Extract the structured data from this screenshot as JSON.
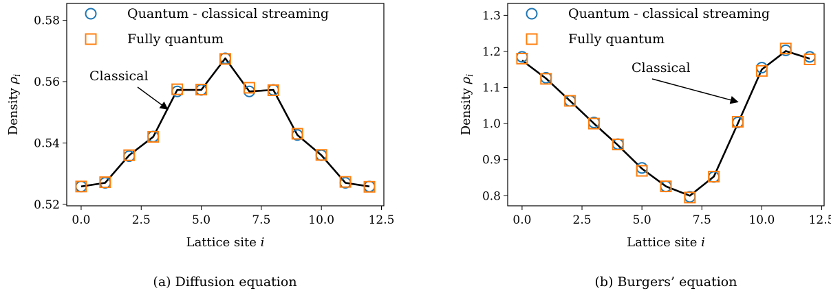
{
  "chart_data": [
    {
      "type": "line",
      "caption": "(a) Diffusion equation",
      "xlabel": "Lattice site i",
      "ylabel": "Density ρi",
      "xlim": [
        -0.6,
        12.6
      ],
      "ylim": [
        0.5195,
        0.5855
      ],
      "xticks": [
        0.0,
        2.5,
        5.0,
        7.5,
        10.0,
        12.5
      ],
      "xtick_labels": [
        "0.0",
        "2.5",
        "5.0",
        "7.5",
        "10.0",
        "12.5"
      ],
      "yticks": [
        0.52,
        0.54,
        0.56,
        0.58
      ],
      "ytick_labels": [
        "0.52",
        "0.54",
        "0.56",
        "0.58"
      ],
      "legend_position": "top",
      "grid": false,
      "annotation": {
        "text": "Classical",
        "arrow_to": [
          3.6,
          0.551
        ]
      },
      "x": [
        0,
        1,
        2,
        3,
        4,
        5,
        6,
        7,
        8,
        9,
        10,
        11,
        12
      ],
      "series": [
        {
          "name": "Classical",
          "style": "line",
          "color": "#000000",
          "values": [
            0.5258,
            0.527,
            0.536,
            0.542,
            0.5573,
            0.5573,
            0.5676,
            0.5568,
            0.5573,
            0.5426,
            0.536,
            0.527,
            0.5258
          ]
        },
        {
          "name": "Quantum - classical streaming",
          "style": "circle",
          "color": "#1f77b4",
          "values": [
            0.5258,
            0.527,
            0.5357,
            0.5421,
            0.5568,
            0.5573,
            0.5676,
            0.5568,
            0.5573,
            0.5426,
            0.536,
            0.527,
            0.5258
          ]
        },
        {
          "name": "Fully quantum",
          "style": "square",
          "color": "#ff7f0e",
          "values": [
            0.5258,
            0.5272,
            0.536,
            0.542,
            0.5575,
            0.5574,
            0.5674,
            0.558,
            0.5572,
            0.543,
            0.5361,
            0.5273,
            0.5257
          ]
        }
      ]
    },
    {
      "type": "line",
      "caption": "(b) Burgers’ equation",
      "xlabel": "Lattice site i",
      "ylabel": "Density ρi",
      "xlim": [
        -0.6,
        12.6
      ],
      "ylim": [
        0.772,
        1.333
      ],
      "xticks": [
        0.0,
        2.5,
        5.0,
        7.5,
        10.0,
        12.5
      ],
      "xtick_labels": [
        "0.0",
        "2.5",
        "5.0",
        "7.5",
        "10.0",
        "12.5"
      ],
      "yticks": [
        0.8,
        0.9,
        1.0,
        1.1,
        1.2,
        1.3
      ],
      "ytick_labels": [
        "0.8",
        "0.9",
        "1.0",
        "1.1",
        "1.2",
        "1.3"
      ],
      "legend_position": "top",
      "grid": false,
      "annotation": {
        "text": "Classical",
        "arrow_to": [
          9.0,
          1.06
        ]
      },
      "x": [
        0,
        1,
        2,
        3,
        4,
        5,
        6,
        7,
        8,
        9,
        10,
        11,
        12
      ],
      "series": [
        {
          "name": "Classical",
          "style": "line",
          "color": "#000000",
          "values": [
            1.175,
            1.125,
            1.063,
            1.0,
            0.94,
            0.875,
            0.826,
            0.8,
            0.853,
            1.0,
            1.15,
            1.201,
            1.18
          ]
        },
        {
          "name": "Quantum - classical streaming",
          "style": "circle",
          "color": "#1f77b4",
          "values": [
            1.185,
            1.127,
            1.063,
            1.003,
            0.943,
            0.877,
            0.826,
            0.797,
            0.852,
            1.003,
            1.155,
            1.203,
            1.185
          ]
        },
        {
          "name": "Fully quantum",
          "style": "square",
          "color": "#ff7f0e",
          "values": [
            1.18,
            1.124,
            1.063,
            1.0,
            0.942,
            0.869,
            0.826,
            0.795,
            0.853,
            1.005,
            1.146,
            1.208,
            1.178
          ]
        }
      ]
    }
  ]
}
